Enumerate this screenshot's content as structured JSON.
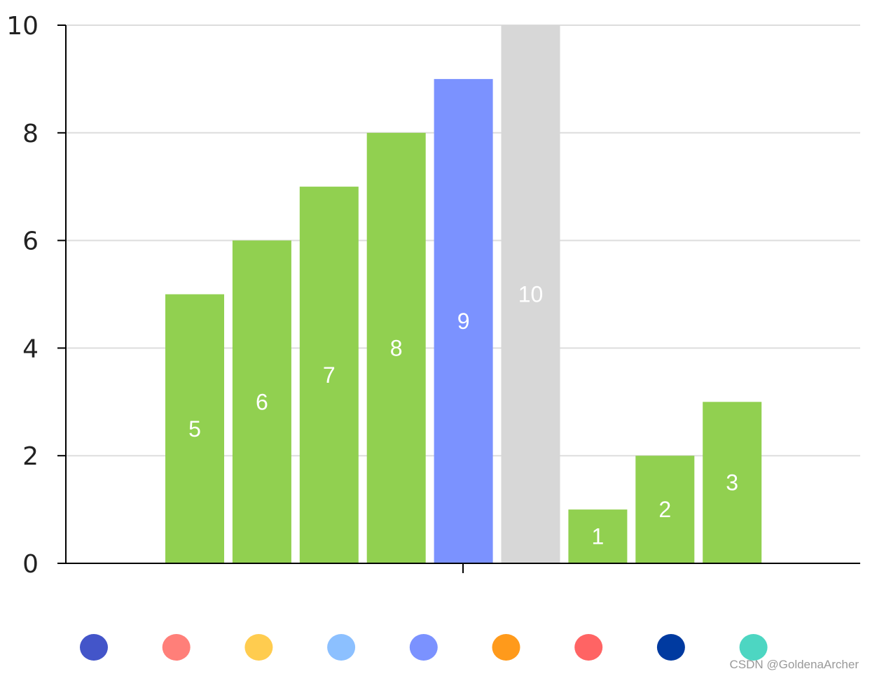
{
  "chart_data": {
    "type": "bar",
    "categories": [
      "",
      "",
      "",
      "",
      "",
      "",
      "",
      "",
      ""
    ],
    "values": [
      5,
      6,
      7,
      8,
      9,
      10,
      1,
      2,
      3
    ],
    "bar_colors": [
      "#91d050",
      "#91d050",
      "#91d050",
      "#91d050",
      "#7b92ff",
      "#d7d7d7",
      "#91d050",
      "#91d050",
      "#91d050"
    ],
    "data_labels": [
      "5",
      "6",
      "7",
      "8",
      "9",
      "10",
      "1",
      "2",
      "3"
    ],
    "ylim": [
      0,
      10
    ],
    "yticks": [
      0,
      2,
      4,
      6,
      8,
      10
    ],
    "ytick_labels": [
      "0",
      "2",
      "4",
      "6",
      "8",
      "10"
    ],
    "grid": true,
    "title": "",
    "xlabel": "",
    "ylabel": ""
  },
  "legend": {
    "position": "bottom",
    "markers": [
      {
        "color": "#4355c9"
      },
      {
        "color": "#ff7f79"
      },
      {
        "color": "#ffcc4f"
      },
      {
        "color": "#8cc0ff"
      },
      {
        "color": "#7b92ff"
      },
      {
        "color": "#ff9a1b"
      },
      {
        "color": "#ff6464"
      },
      {
        "color": "#003aa0"
      },
      {
        "color": "#4dd6c2"
      }
    ]
  },
  "watermark": "CSDN @GoldenaArcher"
}
